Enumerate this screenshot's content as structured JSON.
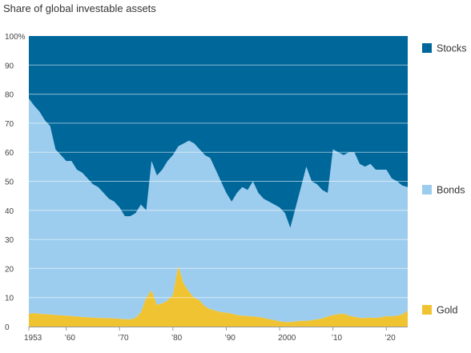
{
  "chart_data": {
    "type": "area",
    "stacked": true,
    "title": "Share of global investable assets",
    "xlabel": "",
    "ylabel": "",
    "xlim": [
      1953,
      2024
    ],
    "ylim": [
      0,
      100
    ],
    "y_ticks": [
      0,
      10,
      20,
      30,
      40,
      50,
      60,
      70,
      80,
      90,
      100
    ],
    "y_tick_labels": [
      "0",
      "10",
      "20",
      "30",
      "40",
      "50",
      "60",
      "70",
      "80",
      "90",
      "100%"
    ],
    "x_ticks": [
      1953,
      1960,
      1970,
      1980,
      1990,
      2000,
      2010,
      2020
    ],
    "x_tick_labels": [
      "1953",
      "’60",
      "’70",
      "’80",
      "’90",
      "2000",
      "’10",
      "’20"
    ],
    "grid": true,
    "legend_position": "right",
    "x": [
      1953,
      1954,
      1955,
      1956,
      1957,
      1958,
      1959,
      1960,
      1961,
      1962,
      1963,
      1964,
      1965,
      1966,
      1967,
      1968,
      1969,
      1970,
      1971,
      1972,
      1973,
      1974,
      1975,
      1976,
      1977,
      1978,
      1979,
      1980,
      1981,
      1982,
      1983,
      1984,
      1985,
      1986,
      1987,
      1988,
      1989,
      1990,
      1991,
      1992,
      1993,
      1994,
      1995,
      1996,
      1997,
      1998,
      1999,
      2000,
      2001,
      2002,
      2003,
      2004,
      2005,
      2006,
      2007,
      2008,
      2009,
      2010,
      2011,
      2012,
      2013,
      2014,
      2015,
      2016,
      2017,
      2018,
      2019,
      2020,
      2021,
      2022,
      2023,
      2024
    ],
    "series": [
      {
        "name": "Gold",
        "color": "#f0c332",
        "values": [
          4.5,
          4.6,
          4.4,
          4.3,
          4.2,
          4.0,
          3.9,
          3.8,
          3.6,
          3.5,
          3.3,
          3.2,
          3.1,
          3.0,
          3.0,
          2.9,
          2.8,
          2.7,
          2.6,
          2.5,
          3.0,
          5.0,
          10.0,
          12.5,
          7.5,
          8.0,
          9.0,
          11.0,
          21.0,
          15.0,
          12.0,
          10.0,
          9.0,
          7.0,
          6.0,
          5.5,
          5.0,
          4.8,
          4.5,
          4.0,
          3.8,
          3.6,
          3.5,
          3.3,
          3.0,
          2.6,
          2.3,
          1.8,
          1.6,
          1.6,
          1.8,
          2.0,
          2.0,
          2.2,
          2.5,
          2.8,
          3.5,
          4.0,
          4.3,
          4.5,
          3.8,
          3.4,
          3.0,
          3.0,
          3.1,
          3.0,
          3.2,
          3.6,
          3.5,
          3.8,
          4.2,
          5.5
        ]
      },
      {
        "name": "Bonds",
        "color": "#9dcdee",
        "values": [
          74.0,
          71.4,
          69.6,
          66.7,
          64.8,
          57.0,
          55.1,
          53.2,
          53.4,
          50.5,
          49.7,
          47.8,
          45.9,
          45.0,
          43.0,
          41.1,
          40.2,
          38.3,
          35.4,
          35.5,
          36.0,
          37.0,
          30.0,
          44.5,
          44.5,
          46.0,
          48.0,
          48.0,
          41.0,
          48.0,
          52.0,
          53.0,
          52.0,
          52.0,
          52.0,
          48.5,
          45.0,
          41.2,
          38.5,
          42.0,
          44.2,
          43.4,
          46.5,
          42.7,
          41.0,
          40.4,
          39.7,
          39.2,
          37.4,
          32.4,
          39.2,
          46.0,
          53.0,
          47.8,
          46.5,
          44.2,
          42.5,
          57.0,
          55.7,
          54.5,
          56.2,
          56.6,
          53.0,
          52.0,
          52.9,
          51.0,
          50.8,
          50.4,
          47.5,
          46.2,
          44.3,
          42.5
        ]
      },
      {
        "name": "Stocks",
        "color": "#00679a",
        "values": [
          21.5,
          24.0,
          26.0,
          29.0,
          31.0,
          39.0,
          41.0,
          43.0,
          43.0,
          46.0,
          47.0,
          49.0,
          51.0,
          52.0,
          54.0,
          56.0,
          57.0,
          59.0,
          62.0,
          62.0,
          61.0,
          58.0,
          60.0,
          43.0,
          48.0,
          46.0,
          43.0,
          41.0,
          38.0,
          37.0,
          36.0,
          37.0,
          39.0,
          41.0,
          42.0,
          46.0,
          50.0,
          54.0,
          57.0,
          54.0,
          52.0,
          53.0,
          50.0,
          54.0,
          56.0,
          57.0,
          58.0,
          59.0,
          61.0,
          66.0,
          59.0,
          52.0,
          45.0,
          50.0,
          51.0,
          53.0,
          54.0,
          39.0,
          40.0,
          41.0,
          40.0,
          40.0,
          44.0,
          45.0,
          44.0,
          46.0,
          46.0,
          46.0,
          49.0,
          50.0,
          51.5,
          52.0
        ]
      }
    ]
  }
}
